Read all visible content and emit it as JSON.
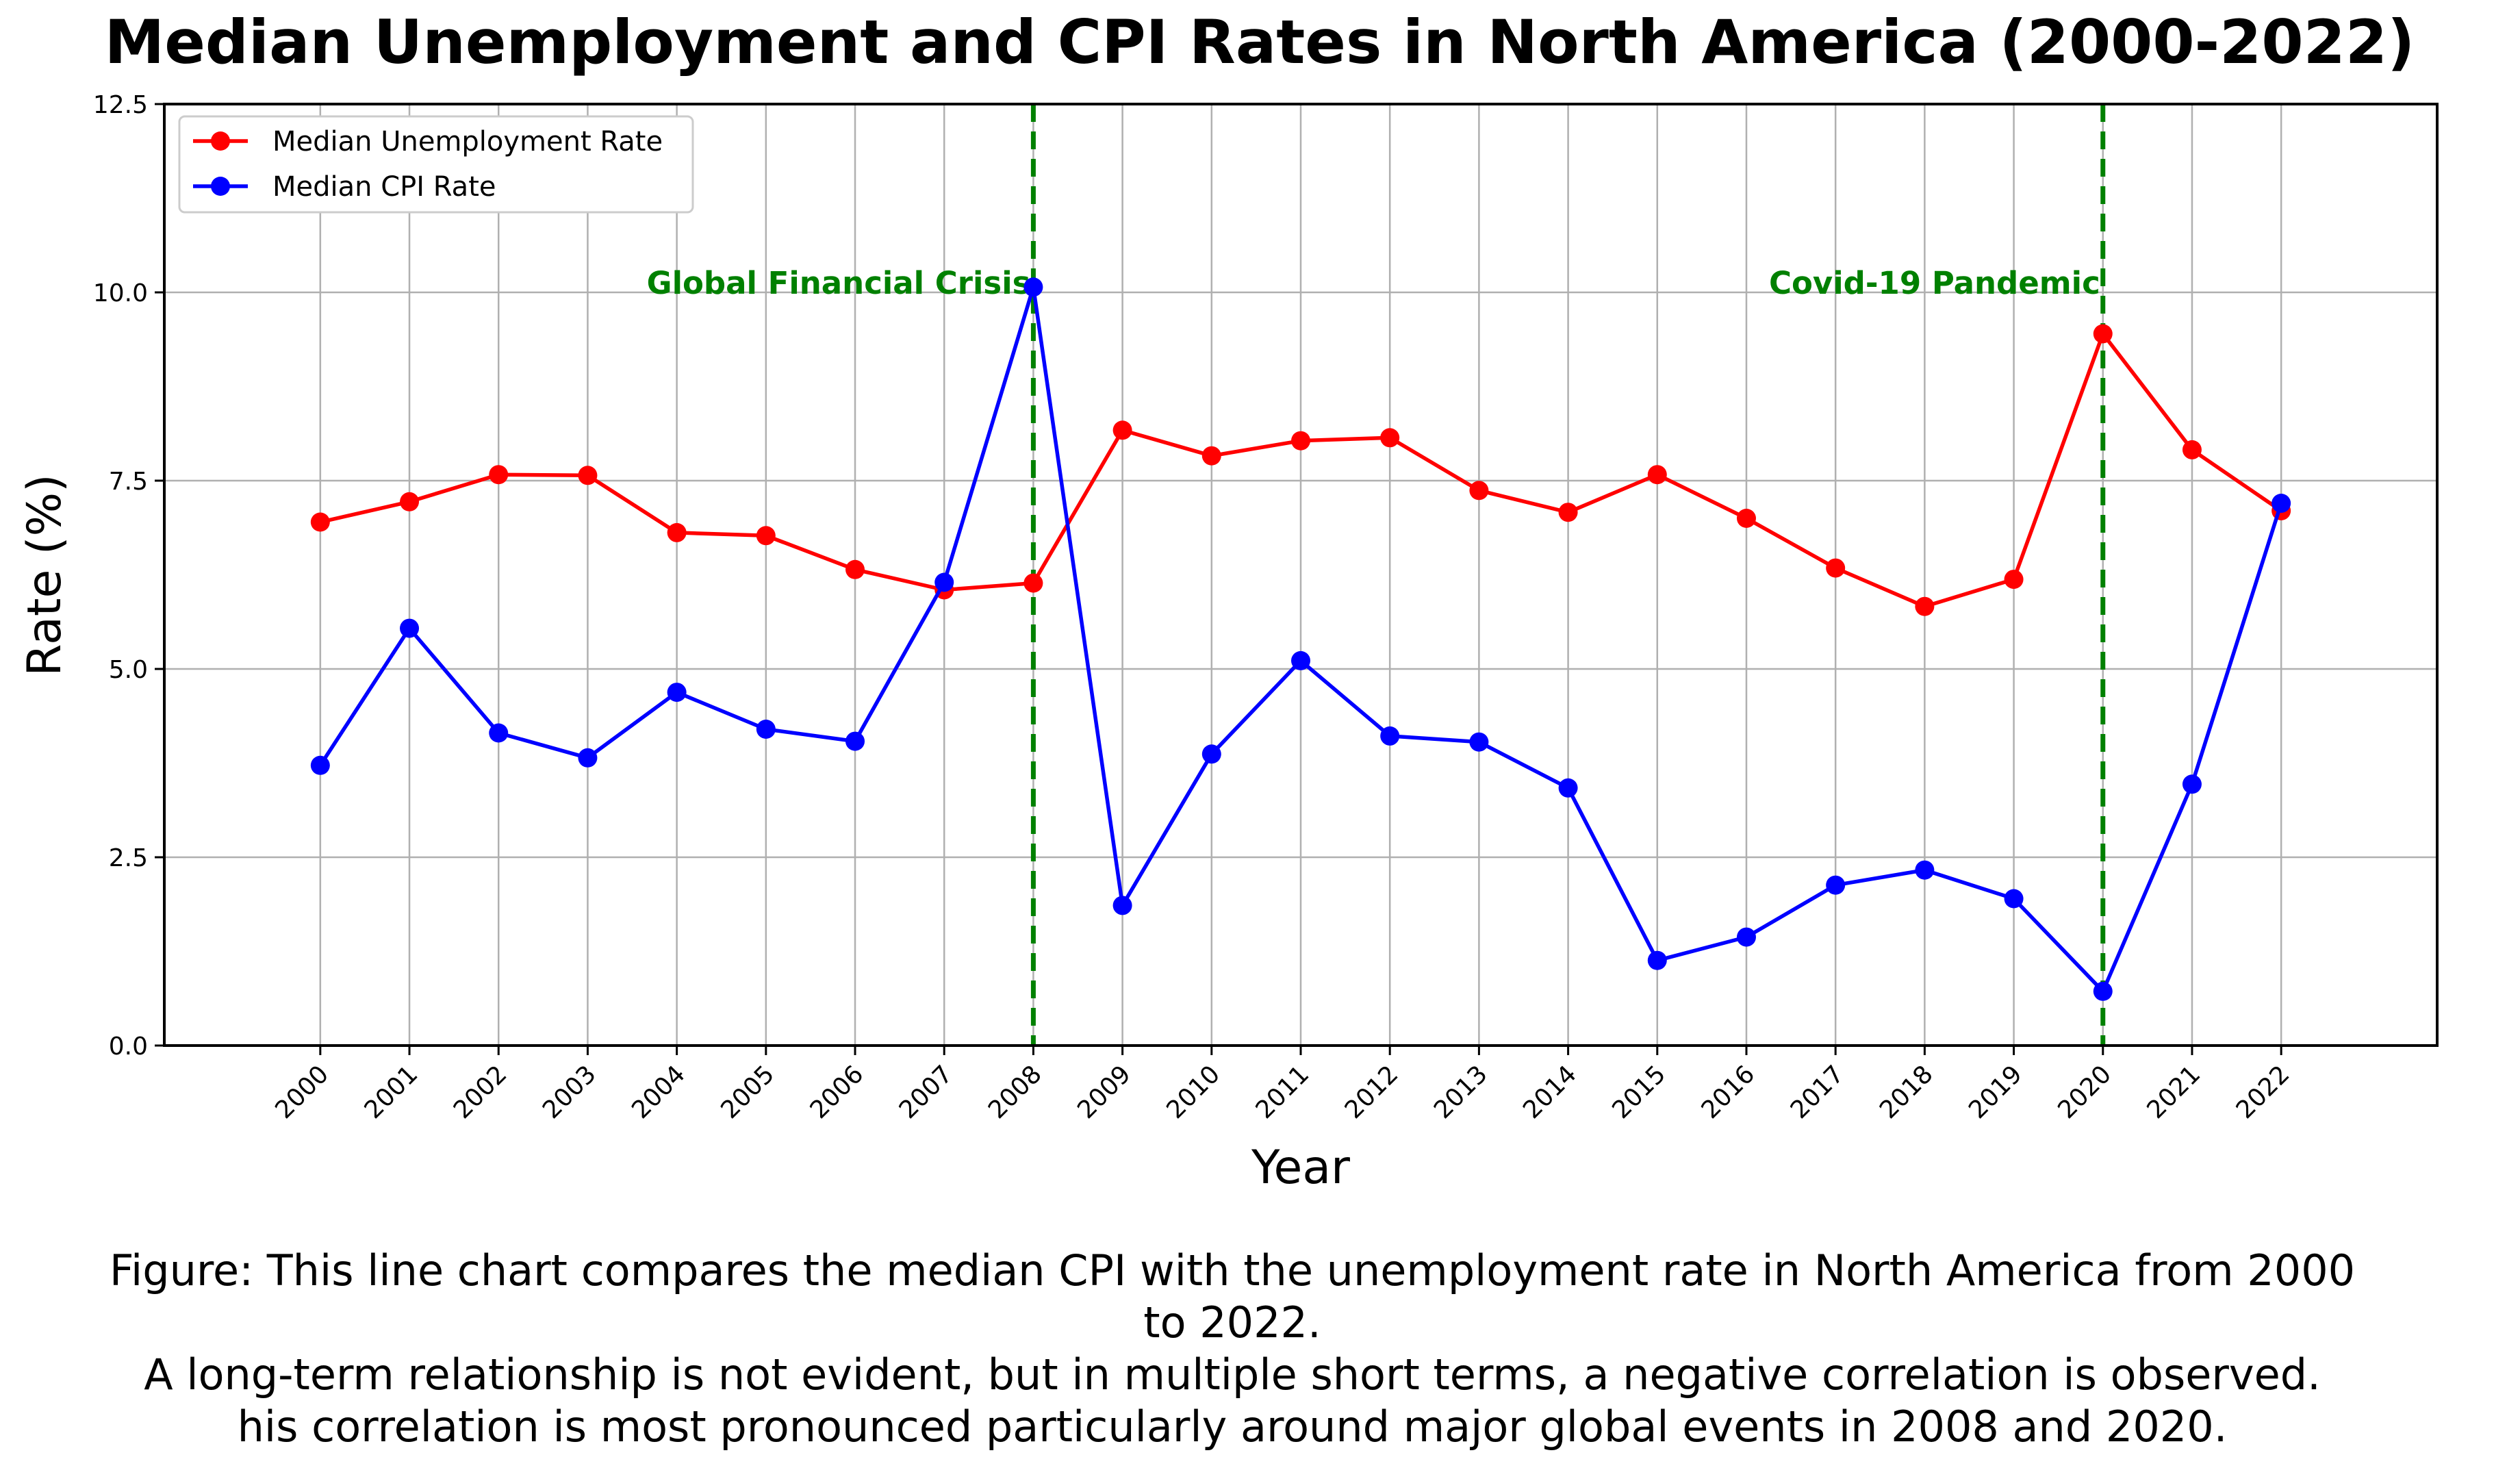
{
  "chart_data": {
    "type": "line",
    "title": "Median Unemployment and CPI Rates in North America (2000-2022)",
    "xlabel": "Year",
    "ylabel": "Rate (%)",
    "x": [
      2000,
      2001,
      2002,
      2003,
      2004,
      2005,
      2006,
      2007,
      2008,
      2009,
      2010,
      2011,
      2012,
      2013,
      2014,
      2015,
      2016,
      2017,
      2018,
      2019,
      2020,
      2021,
      2022
    ],
    "ylim": [
      0,
      12.5
    ],
    "yticks": [
      "0.0",
      "2.5",
      "5.0",
      "7.5",
      "10.0",
      "12.5"
    ],
    "grid": true,
    "legend_position": "upper-left",
    "series": [
      {
        "name": "Median Unemployment Rate",
        "color": "#ff0000",
        "values": [
          6.95,
          7.22,
          7.58,
          7.57,
          6.81,
          6.77,
          6.32,
          6.05,
          6.14,
          8.17,
          7.83,
          8.03,
          8.07,
          7.37,
          7.08,
          7.58,
          7.0,
          6.34,
          5.83,
          6.19,
          9.45,
          7.91,
          7.1
        ]
      },
      {
        "name": "Median CPI Rate",
        "color": "#0000ff",
        "values": [
          3.72,
          5.54,
          4.15,
          3.82,
          4.69,
          4.2,
          4.04,
          6.15,
          10.07,
          1.86,
          3.87,
          5.11,
          4.11,
          4.03,
          3.42,
          1.13,
          1.44,
          2.13,
          2.33,
          1.95,
          0.72,
          3.47,
          7.2
        ]
      }
    ],
    "vlines": [
      {
        "x": 2008,
        "label": "Global Financial Crisis",
        "color": "#008000"
      },
      {
        "x": 2020,
        "label": "Covid-19 Pandemic",
        "color": "#008000"
      }
    ],
    "annotation_y": 10
  },
  "caption": {
    "line1": "Figure: This line chart compares the median CPI with the unemployment rate in North America from 2000",
    "line2": "to 2022.",
    "line3": "A long-term relationship is not evident, but in multiple short terms, a negative correlation is observed.",
    "line4": "his correlation is most pronounced particularly around major global events in 2008 and 2020."
  }
}
